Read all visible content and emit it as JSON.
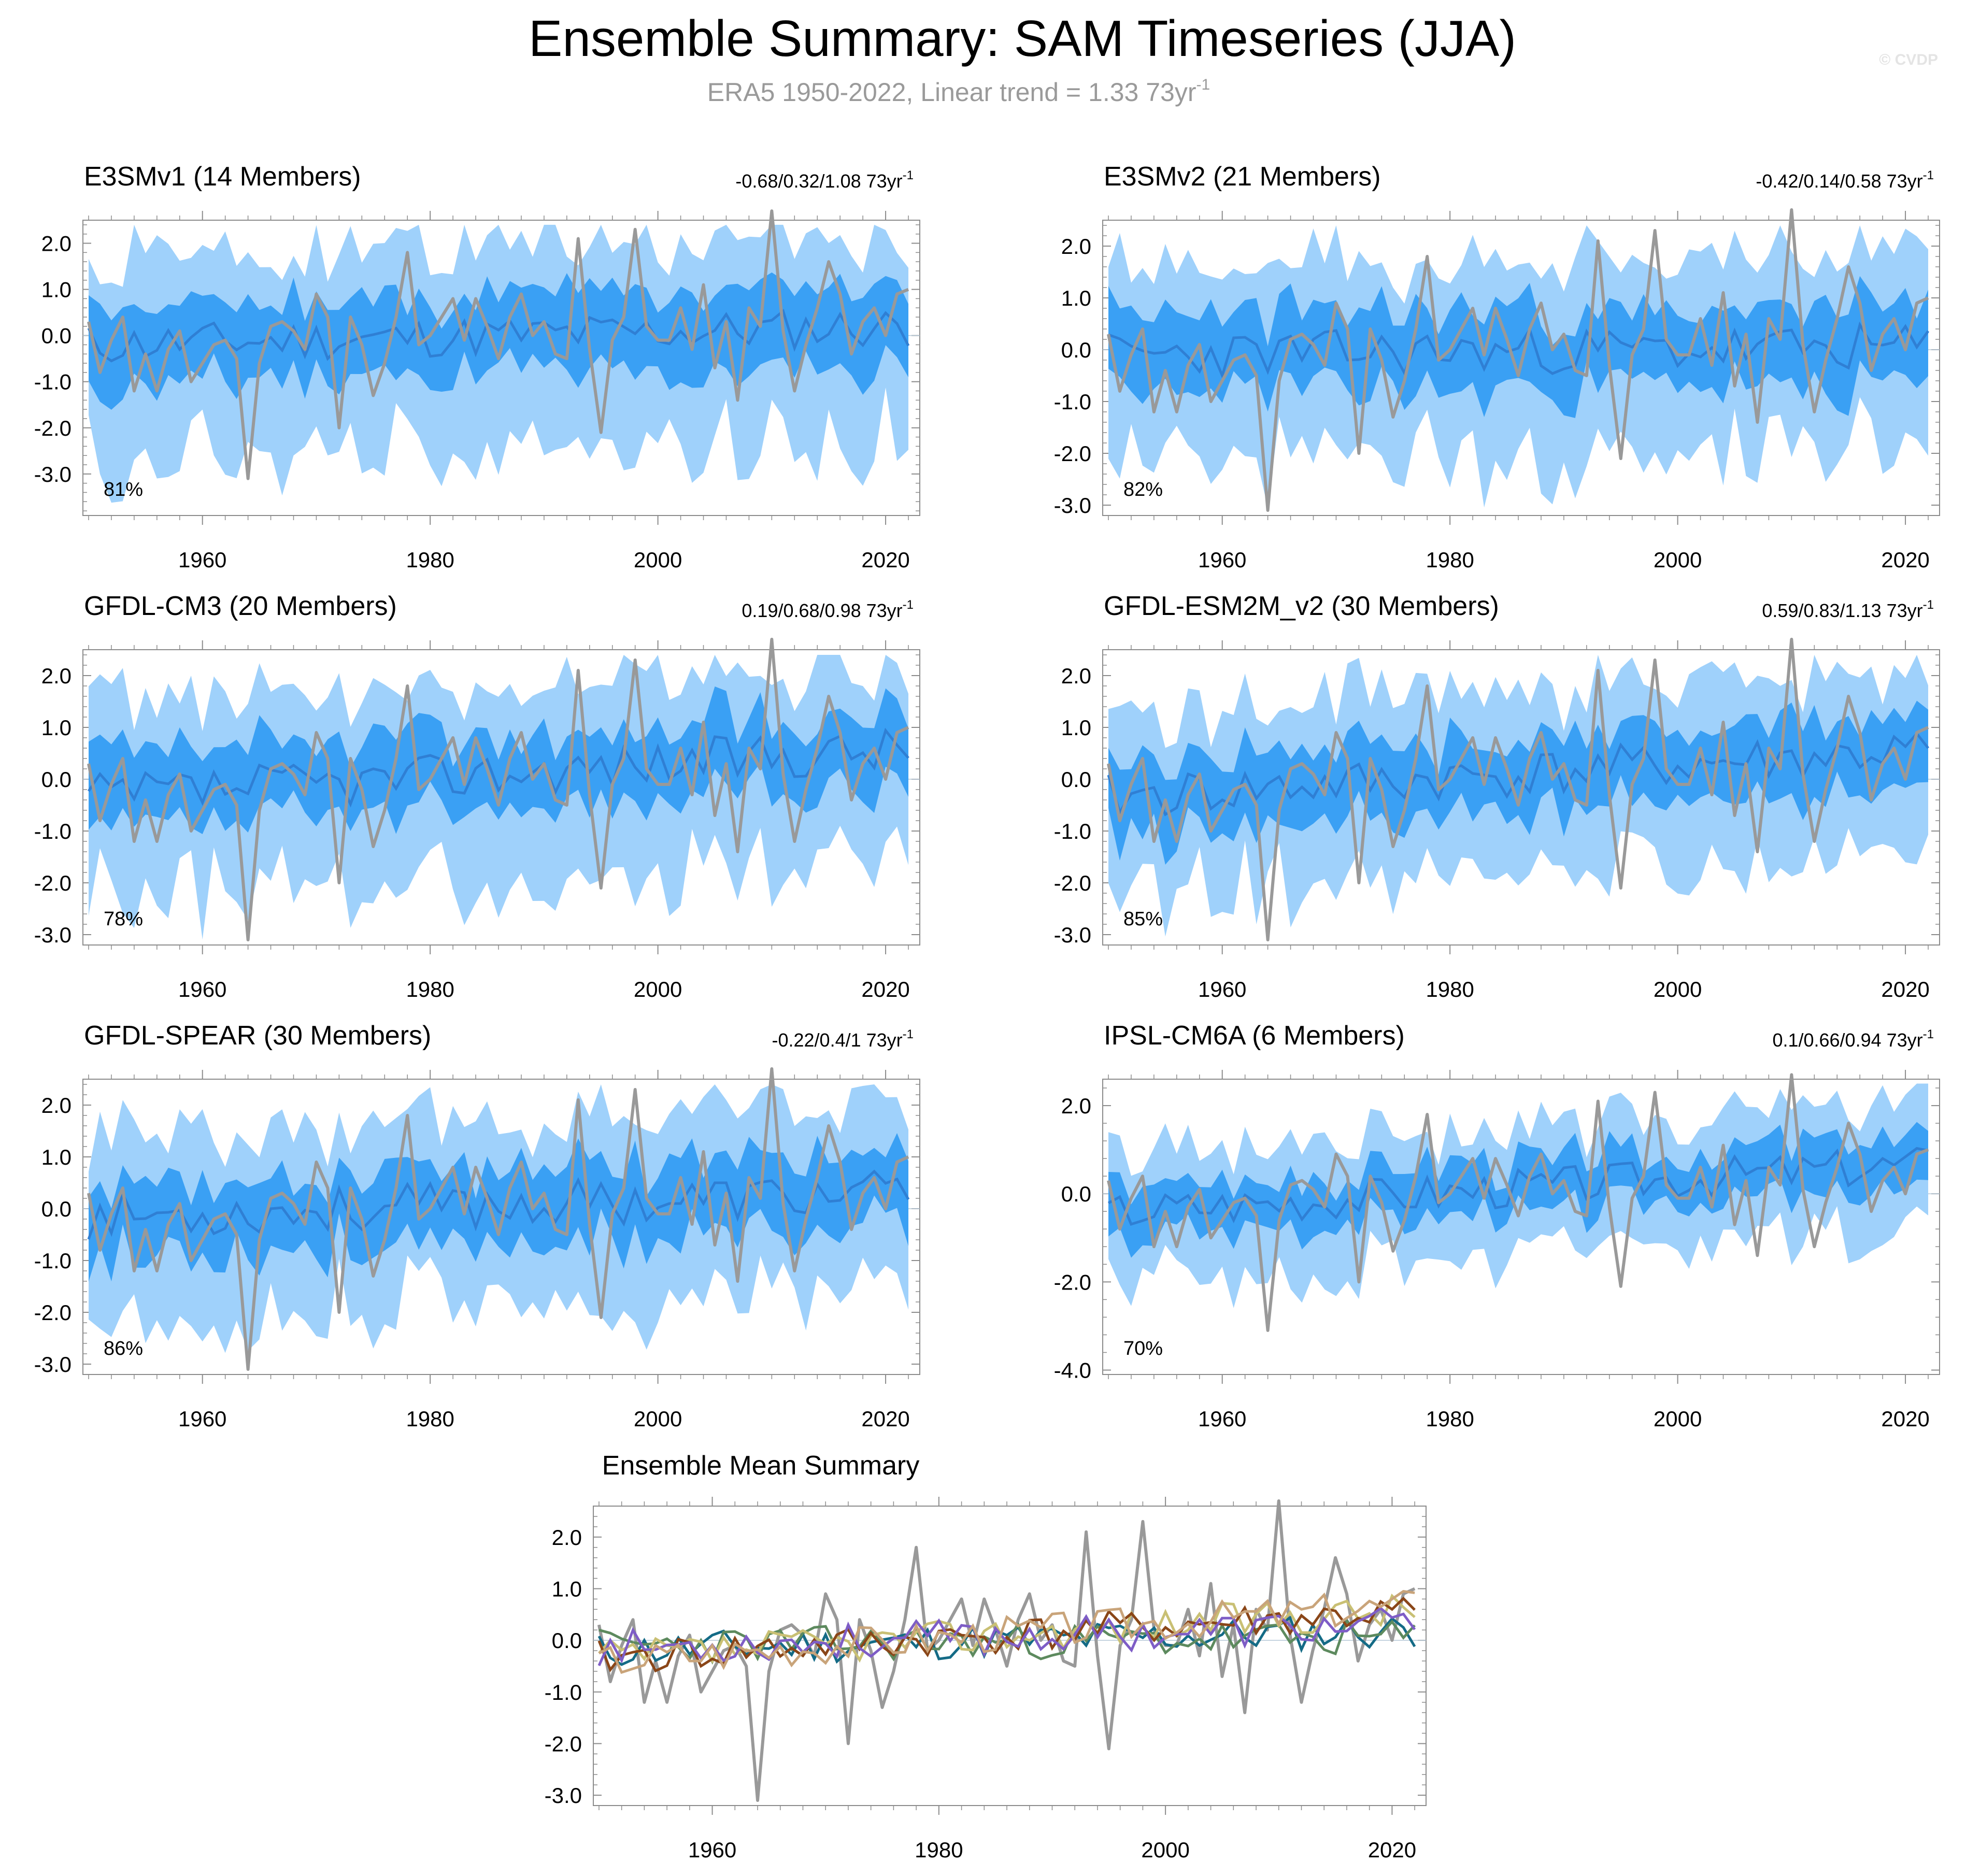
{
  "title": "Ensemble Summary: SAM Timeseries (JJA)",
  "subtitle": {
    "text": "ERA5 1950-2022, Linear trend = 1.33 73yr",
    "sup": "-1"
  },
  "watermark": "© CVDP",
  "colors": {
    "band_outer": "#9fd1fb",
    "band_inner": "#3aa0f4",
    "ens_mean": "#2f7fd4",
    "obs": "#999999",
    "axis": "#8c8c8c"
  },
  "panel_titles": [
    {
      "label": "E3SMv1 (14 Members)",
      "color": "#146b86",
      "trend": "-0.68/0.32/1.08 73yr",
      "sup": "-1",
      "pct": "81%"
    },
    {
      "label": "E3SMv2 (21 Members)",
      "color": "#5d8a5e",
      "trend": "-0.42/0.14/0.58 73yr",
      "sup": "-1",
      "pct": "82%"
    },
    {
      "label": "GFDL-CM3 (20 Members)",
      "color": "#c9c074",
      "trend": "0.19/0.68/0.98 73yr",
      "sup": "-1",
      "pct": "78%"
    },
    {
      "label": "GFDL-ESM2M_v2 (30 Members)",
      "color": "#8a4618",
      "trend": "0.59/0.83/1.13 73yr",
      "sup": "-1",
      "pct": "85%"
    },
    {
      "label": "GFDL-SPEAR (30 Members)",
      "color": "#7e5dc6",
      "trend": "-0.22/0.4/1 73yr",
      "sup": "-1",
      "pct": "86%"
    },
    {
      "label": "IPSL-CM6A (6 Members)",
      "color": "#c9a47a",
      "trend": "0.1/0.66/0.94 73yr",
      "sup": "-1",
      "pct": "70%"
    }
  ],
  "mean_panel_title": "Ensemble Mean Summary",
  "chart_data": [
    {
      "type": "area",
      "name": "E3SMv1",
      "x_range": [
        1950,
        2022
      ],
      "ylim": [
        -3.9,
        2.5
      ],
      "yticks": [
        2.0,
        1.0,
        0.0,
        -1.0,
        -2.0,
        -3.0
      ],
      "ytick_labels": [
        "2.0",
        "1.0",
        "0.0",
        "-1.0",
        "-2.0",
        "-3.0"
      ],
      "xticks": [
        1960,
        1980,
        2000,
        2020
      ],
      "xtick_labels": [
        "1960",
        "1980",
        "2000",
        "2020"
      ],
      "ens_mean_trend": [
        -0.2,
        0.2
      ],
      "band_inner": 0.9,
      "band_outer": 2.0,
      "seed": 11
    },
    {
      "type": "area",
      "name": "E3SMv2",
      "x_range": [
        1950,
        2022
      ],
      "ylim": [
        -3.2,
        2.5
      ],
      "yticks": [
        2.0,
        1.0,
        0.0,
        -1.0,
        -2.0,
        -3.0
      ],
      "ytick_labels": [
        "2.0",
        "1.0",
        "0.0",
        "-1.0",
        "-2.0",
        "-3.0"
      ],
      "xticks": [
        1960,
        1980,
        2000,
        2020
      ],
      "xtick_labels": [
        "1960",
        "1980",
        "2000",
        "2020"
      ],
      "ens_mean_trend": [
        -0.1,
        0.05
      ],
      "band_inner": 0.8,
      "band_outer": 1.7,
      "seed": 23
    },
    {
      "type": "area",
      "name": "GFDL-CM3",
      "x_range": [
        1950,
        2022
      ],
      "ylim": [
        -3.2,
        2.5
      ],
      "yticks": [
        2.0,
        1.0,
        0.0,
        -1.0,
        -2.0,
        -3.0
      ],
      "ytick_labels": [
        "2.0",
        "1.0",
        "0.0",
        "-1.0",
        "-2.0",
        "-3.0"
      ],
      "xticks": [
        1960,
        1980,
        2000,
        2020
      ],
      "xtick_labels": [
        "1960",
        "1980",
        "2000",
        "2020"
      ],
      "ens_mean_trend": [
        -0.35,
        0.6
      ],
      "band_inner": 0.75,
      "band_outer": 1.7,
      "seed": 37
    },
    {
      "type": "area",
      "name": "GFDL-ESM2M_v2",
      "x_range": [
        1950,
        2022
      ],
      "ylim": [
        -3.2,
        2.5
      ],
      "yticks": [
        2.0,
        1.0,
        0.0,
        -1.0,
        -2.0,
        -3.0
      ],
      "ytick_labels": [
        "2.0",
        "1.0",
        "0.0",
        "-1.0",
        "-2.0",
        "-3.0"
      ],
      "xticks": [
        1960,
        1980,
        2000,
        2020
      ],
      "xtick_labels": [
        "1960",
        "1980",
        "2000",
        "2020"
      ],
      "ens_mean_trend": [
        -0.35,
        0.55
      ],
      "band_inner": 0.75,
      "band_outer": 1.6,
      "seed": 41
    },
    {
      "type": "area",
      "name": "GFDL-SPEAR",
      "x_range": [
        1950,
        2022
      ],
      "ylim": [
        -3.2,
        2.5
      ],
      "yticks": [
        2.0,
        1.0,
        0.0,
        -1.0,
        -2.0,
        -3.0
      ],
      "ytick_labels": [
        "2.0",
        "1.0",
        "0.0",
        "-1.0",
        "-2.0",
        "-3.0"
      ],
      "xticks": [
        1960,
        1980,
        2000,
        2020
      ],
      "xtick_labels": [
        "1960",
        "1980",
        "2000",
        "2020"
      ],
      "ens_mean_trend": [
        -0.15,
        0.3
      ],
      "band_inner": 0.75,
      "band_outer": 1.6,
      "seed": 53
    },
    {
      "type": "area",
      "name": "IPSL-CM6A",
      "x_range": [
        1950,
        2022
      ],
      "ylim": [
        -4.1,
        2.6
      ],
      "yticks": [
        2.0,
        0.0,
        -2.0,
        -4.0
      ],
      "ytick_labels": [
        "2.0",
        "0.0",
        "-2.0",
        "-4.0"
      ],
      "xticks": [
        1960,
        1980,
        2000,
        2020
      ],
      "xtick_labels": [
        "1960",
        "1980",
        "2000",
        "2020"
      ],
      "ens_mean_trend": [
        -0.4,
        0.7
      ],
      "band_inner": 0.6,
      "band_outer": 1.3,
      "seed": 67
    },
    {
      "type": "line",
      "name": "Ensemble Mean Summary",
      "x_range": [
        1950,
        2022
      ],
      "ylim": [
        -3.2,
        2.6
      ],
      "yticks": [
        2.0,
        1.0,
        0.0,
        -1.0,
        -2.0,
        -3.0
      ],
      "ytick_labels": [
        "2.0",
        "1.0",
        "0.0",
        "-1.0",
        "-2.0",
        "-3.0"
      ],
      "xticks": [
        1960,
        1980,
        2000,
        2020
      ],
      "xtick_labels": [
        "1960",
        "1980",
        "2000",
        "2020"
      ],
      "series": [
        {
          "name": "E3SMv1",
          "color": "#146b86",
          "trend": [
            -0.2,
            0.2
          ],
          "seed": 11
        },
        {
          "name": "E3SMv2",
          "color": "#5d8a5e",
          "trend": [
            -0.1,
            0.05
          ],
          "seed": 23
        },
        {
          "name": "GFDL-CM3",
          "color": "#c9c074",
          "trend": [
            -0.35,
            0.6
          ],
          "seed": 37
        },
        {
          "name": "GFDL-ESM2M_v2",
          "color": "#8a4618",
          "trend": [
            -0.35,
            0.55
          ],
          "seed": 41
        },
        {
          "name": "GFDL-SPEAR",
          "color": "#7e5dc6",
          "trend": [
            -0.15,
            0.3
          ],
          "seed": 53
        },
        {
          "name": "IPSL-CM6A",
          "color": "#c9a47a",
          "trend": [
            -0.4,
            0.7
          ],
          "seed": 67
        }
      ]
    }
  ],
  "observed": {
    "name": "ERA5",
    "years": [
      1950,
      2022
    ],
    "values": [
      0.3,
      -0.8,
      -0.1,
      0.4,
      -1.2,
      -0.4,
      -1.2,
      -0.3,
      0.1,
      -1.0,
      -0.6,
      -0.2,
      -0.1,
      -0.5,
      -3.1,
      -0.6,
      0.2,
      0.3,
      0.1,
      -0.3,
      0.9,
      0.4,
      -2.0,
      0.4,
      -0.2,
      -1.3,
      -0.6,
      0.4,
      1.8,
      -0.2,
      0.0,
      0.4,
      0.8,
      -0.1,
      0.8,
      0.2,
      -0.5,
      0.4,
      0.9,
      0.0,
      0.3,
      -0.4,
      -0.5,
      2.1,
      -0.3,
      -2.1,
      -0.1,
      0.4,
      2.3,
      0.2,
      -0.1,
      -0.1,
      0.6,
      -0.3,
      1.1,
      -0.7,
      0.3,
      -1.4,
      0.6,
      0.2,
      2.7,
      0.1,
      -1.2,
      -0.2,
      0.6,
      1.6,
      0.9,
      -0.4,
      0.3,
      0.6,
      0.0,
      0.9,
      1.0
    ]
  }
}
